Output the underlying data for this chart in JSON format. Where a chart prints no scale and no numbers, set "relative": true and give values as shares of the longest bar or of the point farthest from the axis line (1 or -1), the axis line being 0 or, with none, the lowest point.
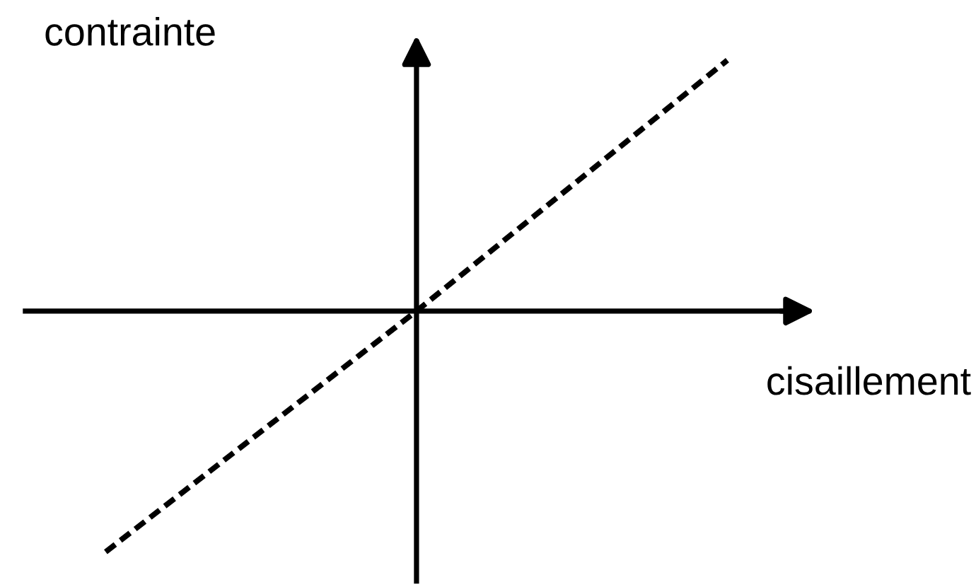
{
  "chart_data": {
    "type": "line",
    "relative": true,
    "xlabel": "cisaillement",
    "ylabel": "contrainte",
    "categories": [
      null,
      null,
      null
    ],
    "series": [
      {
        "color": "#000000",
        "values": [
          -0.96,
          0,
          1
        ],
        "line_style": "dashed"
      }
    ],
    "grid": false,
    "marker": "none"
  }
}
